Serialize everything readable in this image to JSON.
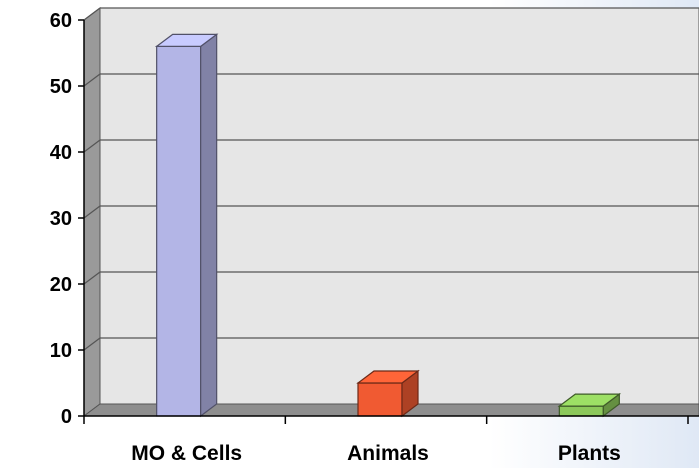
{
  "chart_data": {
    "type": "bar",
    "title": "",
    "xlabel": "",
    "ylabel": "",
    "categories": [
      "MO & Cells",
      "Animals",
      "Plants"
    ],
    "values": [
      56,
      5,
      1.5
    ],
    "colors": [
      "#b3b5e6",
      "#f05a32",
      "#8cc85a"
    ],
    "ylim": [
      0,
      60
    ],
    "yticks": [
      "0",
      "10",
      "20",
      "30",
      "40",
      "50",
      "60"
    ],
    "grid": true,
    "legend": "none",
    "three_d": true
  },
  "colors": {
    "back_wall": "#e6e6e6",
    "side_wall": "#9a9a9a",
    "floor": "#8e8e8e",
    "gridline": "#555555",
    "axis": "#000000"
  }
}
